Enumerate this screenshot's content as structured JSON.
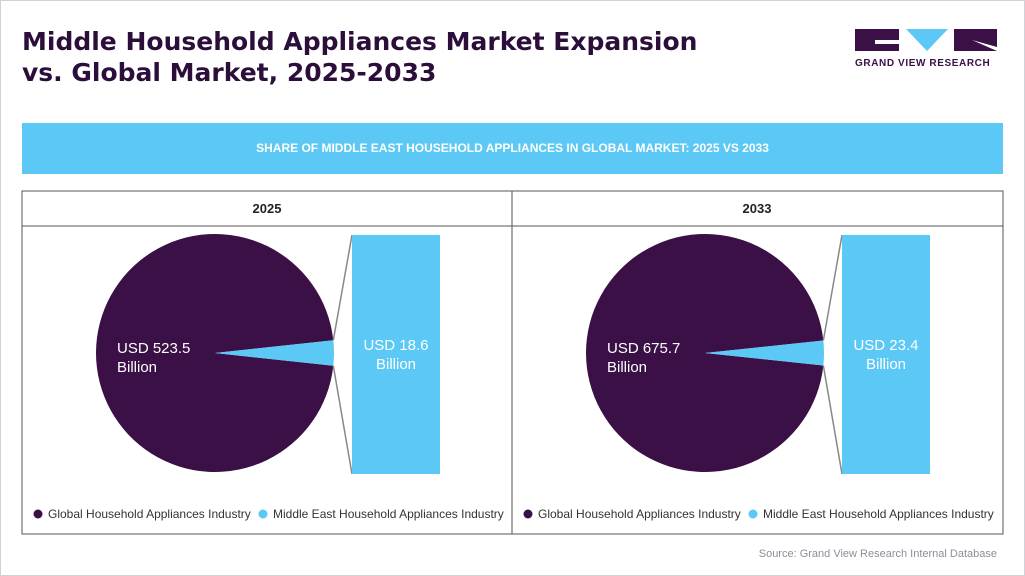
{
  "title": "Middle Household Appliances Market Expansion vs. Global Market, 2025-2033",
  "logo": "GRAND VIEW RESEARCH",
  "banner": "SHARE OF MIDDLE EAST HOUSEHOLD APPLIANCES IN GLOBAL MARKET: 2025 VS 2033",
  "source": "Source: Grand View Research Internal Database",
  "chart_data": [
    {
      "type": "pie",
      "title": "2025",
      "categories": [
        "Global Household Appliances Industry",
        "Middle East Household Appliances Industry"
      ],
      "values": [
        523.5,
        18.6
      ],
      "value_labels": [
        "USD 523.5 Billion",
        "USD 18.6 Billion"
      ],
      "colors": [
        "#3a1046",
        "#5bc8f5"
      ]
    },
    {
      "type": "pie",
      "title": "2033",
      "categories": [
        "Global Household Appliances Industry",
        "Middle East Household Appliances Industry"
      ],
      "values": [
        675.7,
        23.4
      ],
      "value_labels": [
        "USD 675.7 Billion",
        "USD 23.4 Billion"
      ],
      "colors": [
        "#3a1046",
        "#5bc8f5"
      ]
    }
  ]
}
